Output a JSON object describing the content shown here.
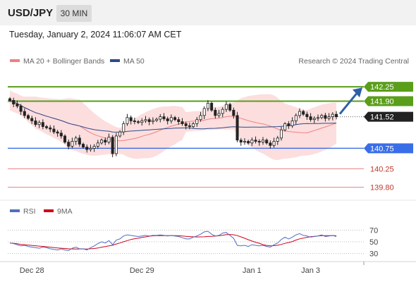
{
  "header": {
    "symbol": "USD/JPY",
    "timeframe": "30 MIN"
  },
  "timestamp": "Tuesday, January 2, 2024 11:06:07 AM CET",
  "legend": {
    "bollinger_label": "MA 20 + Bollinger Bands",
    "bollinger_color": "#f08080",
    "ma50_label": "MA 50",
    "ma50_color": "#2b4b8c",
    "credit": "Research © 2024 Trading Central"
  },
  "rsi_legend": {
    "rsi_label": "RSI",
    "rsi_color": "#4f6fc0",
    "ma_label": "9MA",
    "ma_color": "#d0021b"
  },
  "chart_data": [
    {
      "type": "candlestick",
      "ylim": [
        139.5,
        142.7
      ],
      "x_ticks": [
        {
          "label": "Dec 28",
          "index": 6
        },
        {
          "label": "Dec 29",
          "index": 36
        },
        {
          "label": "Jan 1",
          "index": 66
        },
        {
          "label": "Jan 3",
          "index": 82
        }
      ],
      "current_price": {
        "label": "141.52",
        "value": 141.52
      },
      "levels": [
        {
          "label": "142.25",
          "value": 142.25,
          "style": "green"
        },
        {
          "label": "141.90",
          "value": 141.9,
          "style": "green"
        },
        {
          "label": "140.75",
          "value": 140.75,
          "style": "blue"
        },
        {
          "label": "140.25",
          "value": 140.25,
          "style": "red"
        },
        {
          "label": "139.80",
          "value": 139.8,
          "style": "red"
        }
      ],
      "colors": {
        "green": "#5a9e1a",
        "blue": "#3a6ee8",
        "red": "#e88080",
        "red_text": "#c0392b",
        "candle_up": "#ffffff",
        "candle_down": "#222222",
        "candle_wick": "#222222",
        "band_fill": "#fbd3d3",
        "ma20": "#f08080",
        "ma50": "#2b4b8c",
        "arrow": "#2d5fa8"
      },
      "series": [
        {
          "name": "USD/JPY",
          "close": [
            141.92,
            141.83,
            141.78,
            141.65,
            141.55,
            141.48,
            141.42,
            141.33,
            141.38,
            141.28,
            141.25,
            141.22,
            141.15,
            141.12,
            141.05,
            140.9,
            140.8,
            140.92,
            141.0,
            140.85,
            140.78,
            140.72,
            140.75,
            140.8,
            140.88,
            140.95,
            140.9,
            141.02,
            140.62,
            141.05,
            141.15,
            141.35,
            141.5,
            141.42,
            141.4,
            141.38,
            141.42,
            141.45,
            141.4,
            141.43,
            141.46,
            141.52,
            141.47,
            141.42,
            141.5,
            141.45,
            141.4,
            141.35,
            141.3,
            141.28,
            141.35,
            141.45,
            141.55,
            141.72,
            141.85,
            141.68,
            141.55,
            141.6,
            141.7,
            141.82,
            141.68,
            141.55,
            140.95,
            140.9,
            140.92,
            140.88,
            140.95,
            140.92,
            140.9,
            140.95,
            140.88,
            140.82,
            140.92,
            141.0,
            141.2,
            141.35,
            141.3,
            141.42,
            141.55,
            141.65,
            141.58,
            141.52,
            141.45,
            141.48,
            141.5,
            141.55,
            141.48,
            141.52,
            141.58,
            141.52
          ]
        }
      ]
    },
    {
      "type": "line",
      "ylim": [
        15,
        85
      ],
      "y_ticks": [
        "70",
        "50",
        "30"
      ],
      "y_tick_values": [
        70,
        50,
        30
      ],
      "series": [
        {
          "name": "RSI",
          "values": [
            48,
            47,
            45,
            43,
            44,
            42,
            41,
            40,
            39,
            41,
            40,
            38,
            37,
            36,
            38,
            36,
            35,
            39,
            41,
            38,
            38,
            36,
            40,
            43,
            47,
            50,
            48,
            52,
            45,
            53,
            55,
            60,
            62,
            61,
            60,
            59,
            60,
            61,
            60,
            61,
            61,
            62,
            61,
            60,
            61,
            60,
            59,
            57,
            55,
            55,
            58,
            60,
            63,
            67,
            68,
            63,
            60,
            61,
            65,
            66,
            61,
            56,
            44,
            43,
            44,
            42,
            45,
            44,
            43,
            44,
            42,
            41,
            45,
            48,
            54,
            58,
            55,
            58,
            62,
            64,
            61,
            60,
            58,
            59,
            60,
            62,
            59,
            60,
            61,
            59
          ]
        },
        {
          "name": "9MA",
          "values": [
            48,
            47.5,
            46.7,
            45.5,
            45,
            44.4,
            43.8,
            43.3,
            42.6,
            42.1,
            41.5,
            40.8,
            40.2,
            39.5,
            39.0,
            38.5,
            38.0,
            37.8,
            37.7,
            37.8,
            37.8,
            37.7,
            38.0,
            38.5,
            39.4,
            40.8,
            41.9,
            43.1,
            44.1,
            46.2,
            48.0,
            50.1,
            52.0,
            54.0,
            55.3,
            56.2,
            57.5,
            58.4,
            59.6,
            60.2,
            60.5,
            60.6,
            60.7,
            60.5,
            60.6,
            60.6,
            60.4,
            60.0,
            59.3,
            58.9,
            58.6,
            58.3,
            58.4,
            58.6,
            59.2,
            59.4,
            59.8,
            60.4,
            61.1,
            62.3,
            62.5,
            62.1,
            60.6,
            58.4,
            56.1,
            53.6,
            51.3,
            49.3,
            47.5,
            45.1,
            43.9,
            43.1,
            43.4,
            44.1,
            45.5,
            47.3,
            48.8,
            50.5,
            53.0,
            55.1,
            56.3,
            57.7,
            58.7,
            59.4,
            59.9,
            60.5,
            60.6,
            60.6,
            60.7,
            60.4
          ]
        }
      ]
    }
  ]
}
